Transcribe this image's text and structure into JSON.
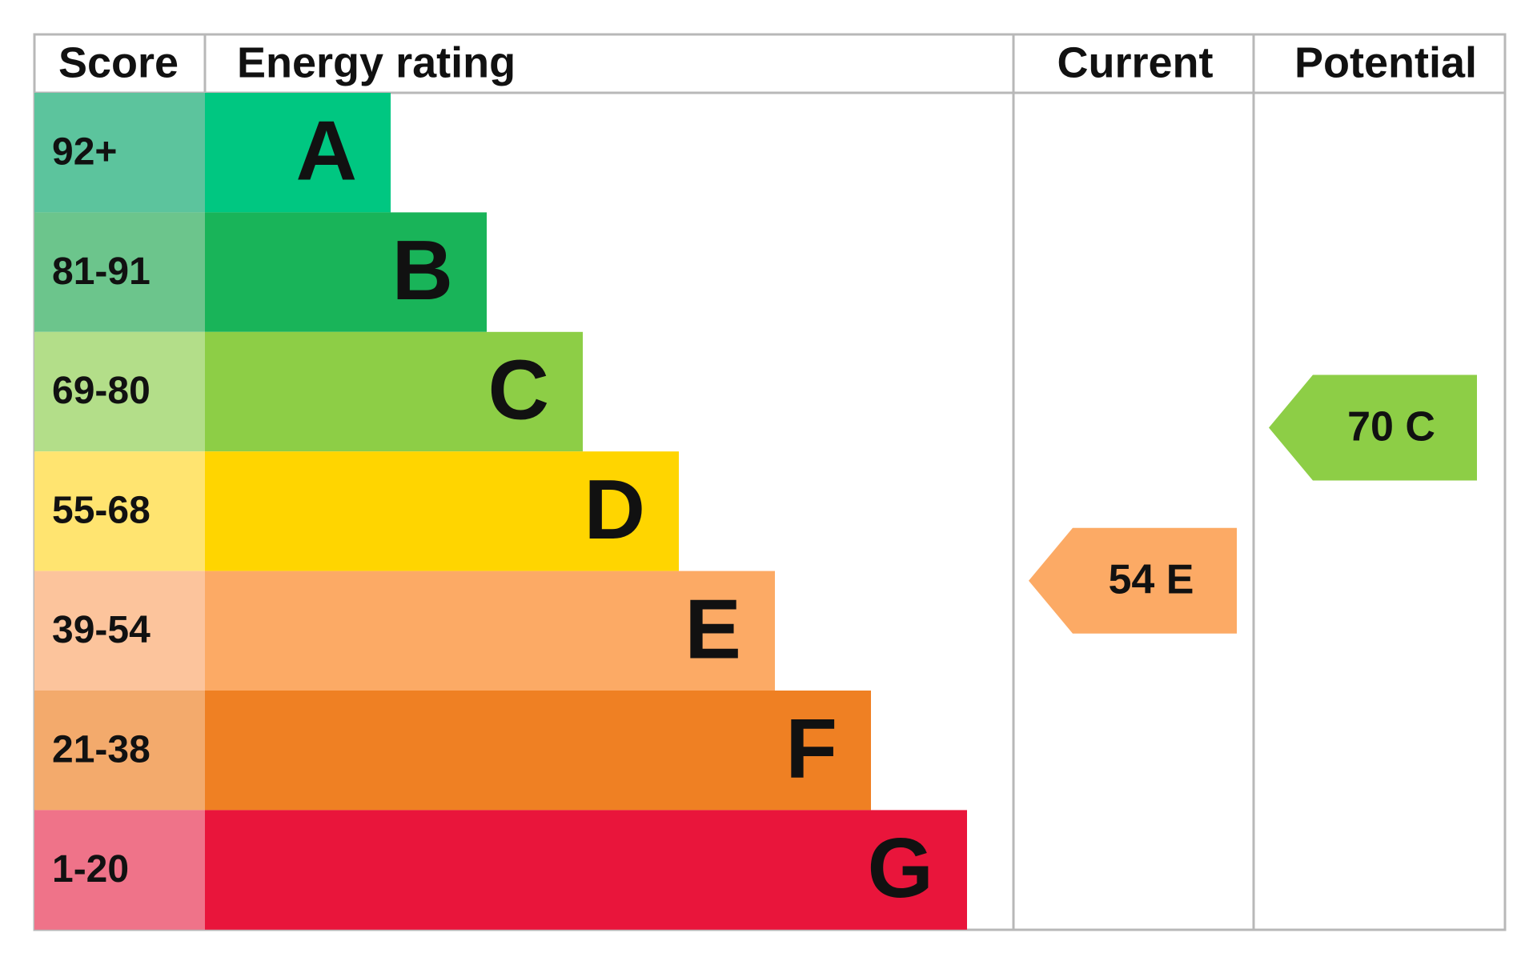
{
  "header": [
    "Score",
    "Energy rating",
    "Current",
    "Potential"
  ],
  "bands": [
    {
      "score": "92+",
      "rating": "A",
      "color": "#00c781",
      "score_color": "#5cc49d"
    },
    {
      "score": "81-91",
      "rating": "B",
      "color": "#19b459",
      "score_color": "#6cc58c"
    },
    {
      "score": "69-80",
      "rating": "C",
      "color": "#8dce46",
      "score_color": "#b3de89"
    },
    {
      "score": "55-68",
      "rating": "D",
      "color": "#ffd500",
      "score_color": "#ffe470"
    },
    {
      "score": "39-54",
      "rating": "E",
      "color": "#fcaa65",
      "score_color": "#fcc49c"
    },
    {
      "score": "21-38",
      "rating": "F",
      "color": "#ef8023",
      "score_color": "#f3aa6c"
    },
    {
      "score": "1-20",
      "rating": "G",
      "color": "#e9153b",
      "score_color": "#ef7389"
    }
  ],
  "current": {
    "score": 54,
    "rating": "E"
  },
  "potential": {
    "score": 70,
    "rating": "C"
  }
}
